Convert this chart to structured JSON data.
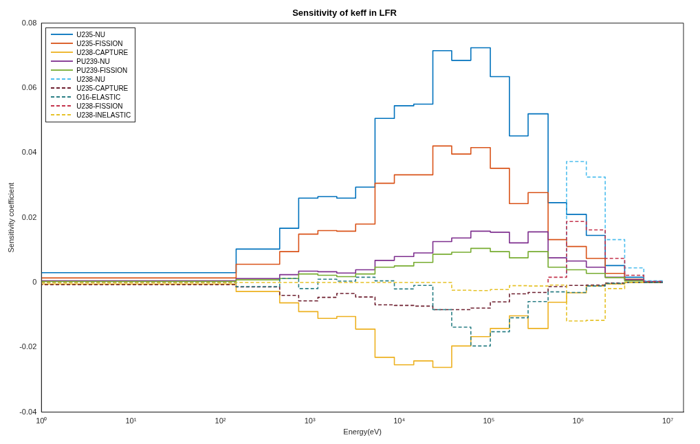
{
  "chart_data": {
    "type": "step",
    "title": "Sensitivity of keff in LFR",
    "xlabel": "Energy(eV)",
    "ylabel": "Sensitivity coefficient",
    "log": "x",
    "grid": false,
    "legend": "top left",
    "marker": "none",
    "xlim": [
      1,
      15000000
    ],
    "ylim": [
      -0.04,
      0.08
    ],
    "xticks": [
      {
        "value": 1,
        "label": "10⁰"
      },
      {
        "value": 10,
        "label": "10¹"
      },
      {
        "value": 100,
        "label": "10²"
      },
      {
        "value": 1000,
        "label": "10³"
      },
      {
        "value": 10000,
        "label": "10⁴"
      },
      {
        "value": 100000,
        "label": "10⁵"
      },
      {
        "value": 1000000,
        "label": "10⁶"
      },
      {
        "value": 10000000,
        "label": "10⁷"
      }
    ],
    "yticks": [
      -0.04,
      -0.02,
      0,
      0.02,
      0.04,
      0.06,
      0.08
    ],
    "x": [
      1,
      150,
      460,
      750,
      1230,
      2000,
      3250,
      5350,
      8800,
      14500,
      23700,
      38500,
      63000,
      104000,
      170000,
      275000,
      460000,
      740000,
      1230000,
      2000000,
      3300000,
      5400000,
      8800000
    ],
    "series": [
      {
        "name": "U235-NU",
        "color": "#0072bd",
        "line_style": "solid",
        "values": [
          0,
          0.003,
          0.0103,
          0.0167,
          0.026,
          0.0265,
          0.026,
          0.0294,
          0.0506,
          0.0545,
          0.055,
          0.0715,
          0.0685,
          0.0724,
          0.0635,
          0.0452,
          0.052,
          0.0246,
          0.021,
          0.0145,
          0.0052,
          0.0016,
          0.0003
        ]
      },
      {
        "name": "U235-FISSION",
        "color": "#d95319",
        "line_style": "solid",
        "values": [
          0,
          0.0014,
          0.0056,
          0.0095,
          0.0149,
          0.016,
          0.0158,
          0.018,
          0.0306,
          0.0332,
          0.0332,
          0.0421,
          0.0396,
          0.0416,
          0.0352,
          0.0243,
          0.0277,
          0.0132,
          0.0111,
          0.0074,
          0.0028,
          0.001,
          0
        ]
      },
      {
        "name": "U238-CAPTURE",
        "color": "#edb120",
        "line_style": "solid",
        "values": [
          0,
          -0.0005,
          -0.0028,
          -0.0063,
          -0.009,
          -0.0111,
          -0.0105,
          -0.0144,
          -0.0231,
          -0.0254,
          -0.0242,
          -0.0262,
          -0.0196,
          -0.0167,
          -0.0142,
          -0.0103,
          -0.0142,
          -0.0061,
          -0.0032,
          -0.0011,
          -0.0005,
          0,
          0
        ]
      },
      {
        "name": "PU239-NU",
        "color": "#7e2f8e",
        "line_style": "solid",
        "values": [
          0,
          0.0005,
          0.0012,
          0.0024,
          0.0035,
          0.0033,
          0.0029,
          0.0039,
          0.0068,
          0.008,
          0.0091,
          0.0126,
          0.0137,
          0.0158,
          0.0155,
          0.0122,
          0.0156,
          0.0076,
          0.0066,
          0.0047,
          0.0016,
          0.0008,
          0.0002
        ]
      },
      {
        "name": "PU239-FISSION",
        "color": "#77ac30",
        "line_style": "solid",
        "values": [
          0,
          0.0003,
          0.0008,
          0.0012,
          0.0026,
          0.0022,
          0.0018,
          0.0026,
          0.0047,
          0.0051,
          0.0062,
          0.0087,
          0.0093,
          0.0105,
          0.0095,
          0.0076,
          0.0095,
          0.0047,
          0.0039,
          0.0028,
          0.0015,
          0.0005,
          0
        ]
      },
      {
        "name": "U238-NU",
        "color": "#4dbeee",
        "line_style": "dashed",
        "values": [
          null,
          null,
          null,
          null,
          null,
          null,
          null,
          null,
          null,
          null,
          null,
          null,
          null,
          null,
          null,
          null,
          null,
          0.0026,
          0.0373,
          0.0325,
          0.0132,
          0.0045,
          0.0005
        ]
      },
      {
        "name": "U235-CAPTURE",
        "color": "#6d1f2f",
        "line_style": "dashed",
        "values": [
          0,
          -0.0007,
          -0.0014,
          -0.004,
          -0.0057,
          -0.0046,
          -0.0034,
          -0.0045,
          -0.0069,
          -0.0071,
          -0.0073,
          -0.0084,
          -0.0084,
          -0.0079,
          -0.006,
          -0.0035,
          -0.0031,
          -0.0013,
          -0.0009,
          -0.0008,
          -0.0002,
          0,
          0
        ]
      },
      {
        "name": "O16-ELASTIC",
        "color": "#2a7f85",
        "line_style": "dashed",
        "values": [
          0,
          0,
          -0.0013,
          0.0012,
          -0.0019,
          0.001,
          0.0004,
          0.0016,
          0.0005,
          -0.002,
          -0.0009,
          -0.0084,
          -0.0138,
          -0.0196,
          -0.0152,
          -0.0109,
          -0.0059,
          -0.0029,
          -0.0031,
          -0.0011,
          -0.0003,
          0,
          0
        ]
      },
      {
        "name": "U238-FISSION",
        "color": "#c4324b",
        "line_style": "dashed",
        "values": [
          null,
          null,
          null,
          null,
          null,
          null,
          null,
          null,
          null,
          null,
          null,
          null,
          null,
          null,
          null,
          null,
          0,
          0.0016,
          0.0188,
          0.0162,
          0.0074,
          0.0022,
          0.0003
        ]
      },
      {
        "name": "U238-INELASTIC",
        "color": "#e6c229",
        "line_style": "dashed",
        "values": [
          0,
          0,
          0,
          0,
          0,
          0,
          0,
          0,
          0,
          0,
          0,
          0,
          -0.0024,
          -0.0025,
          -0.0022,
          -0.001,
          -0.0011,
          -0.0008,
          -0.0119,
          -0.0117,
          -0.0019,
          0,
          null
        ]
      }
    ]
  }
}
